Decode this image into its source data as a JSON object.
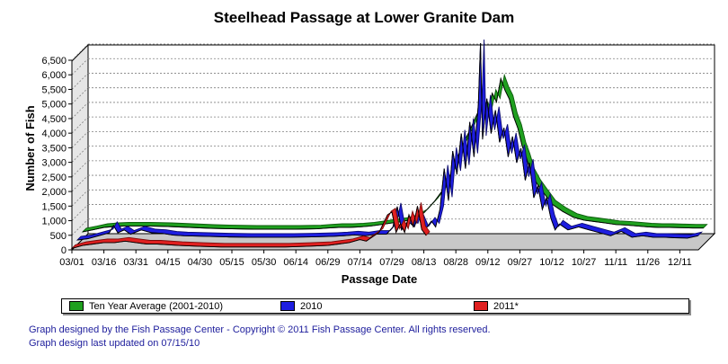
{
  "chart_data": {
    "type": "area",
    "title": "Steelhead Passage at Lower Granite Dam",
    "xlabel": "Passage Date",
    "ylabel": "Number of Fish",
    "x_ticks": [
      "03/01",
      "03/16",
      "03/31",
      "04/15",
      "04/30",
      "05/15",
      "05/30",
      "06/14",
      "06/29",
      "07/14",
      "07/29",
      "08/13",
      "08/28",
      "09/12",
      "09/27",
      "10/12",
      "10/27",
      "11/11",
      "11/26",
      "12/11"
    ],
    "y_ticks": [
      "0",
      "500",
      "1,000",
      "1,500",
      "2,000",
      "2,500",
      "3,000",
      "3,500",
      "4,000",
      "4,500",
      "5,000",
      "5,500",
      "6,000",
      "6,500"
    ],
    "ylim": [
      0,
      7000
    ],
    "x_range_days": [
      0,
      292
    ],
    "grid": true,
    "legend_position": "bottom",
    "series": [
      {
        "name": "Ten Year Average (2001-2010)",
        "color": "#1fa01f",
        "points": [
          [
            0,
            250
          ],
          [
            5,
            320
          ],
          [
            10,
            400
          ],
          [
            15,
            430
          ],
          [
            20,
            450
          ],
          [
            30,
            450
          ],
          [
            40,
            430
          ],
          [
            50,
            400
          ],
          [
            60,
            370
          ],
          [
            70,
            350
          ],
          [
            80,
            340
          ],
          [
            90,
            340
          ],
          [
            100,
            340
          ],
          [
            110,
            350
          ],
          [
            115,
            380
          ],
          [
            120,
            400
          ],
          [
            125,
            400
          ],
          [
            130,
            420
          ],
          [
            135,
            450
          ],
          [
            140,
            500
          ],
          [
            145,
            550
          ],
          [
            150,
            600
          ],
          [
            155,
            700
          ],
          [
            160,
            900
          ],
          [
            165,
            1300
          ],
          [
            170,
            1800
          ],
          [
            174,
            2500
          ],
          [
            178,
            3200
          ],
          [
            182,
            3800
          ],
          [
            185,
            4300
          ],
          [
            188,
            4600
          ],
          [
            190,
            4300
          ],
          [
            192,
            5000
          ],
          [
            194,
            4700
          ],
          [
            196,
            5500
          ],
          [
            198,
            5100
          ],
          [
            200,
            4800
          ],
          [
            202,
            4200
          ],
          [
            204,
            3800
          ],
          [
            206,
            3200
          ],
          [
            208,
            2800
          ],
          [
            210,
            2300
          ],
          [
            213,
            1900
          ],
          [
            216,
            1600
          ],
          [
            220,
            1200
          ],
          [
            225,
            950
          ],
          [
            230,
            750
          ],
          [
            235,
            650
          ],
          [
            240,
            600
          ],
          [
            245,
            550
          ],
          [
            250,
            500
          ],
          [
            255,
            480
          ],
          [
            260,
            450
          ],
          [
            265,
            420
          ],
          [
            270,
            400
          ],
          [
            275,
            400
          ],
          [
            280,
            390
          ],
          [
            286,
            380
          ],
          [
            291,
            380
          ]
        ]
      },
      {
        "name": "2010",
        "color": "#1e1ee0",
        "points": [
          [
            0,
            150
          ],
          [
            5,
            200
          ],
          [
            10,
            300
          ],
          [
            15,
            400
          ],
          [
            17,
            650
          ],
          [
            19,
            400
          ],
          [
            22,
            500
          ],
          [
            25,
            350
          ],
          [
            30,
            500
          ],
          [
            35,
            400
          ],
          [
            40,
            380
          ],
          [
            45,
            320
          ],
          [
            50,
            300
          ],
          [
            60,
            280
          ],
          [
            70,
            260
          ],
          [
            80,
            250
          ],
          [
            90,
            250
          ],
          [
            100,
            250
          ],
          [
            110,
            260
          ],
          [
            120,
            280
          ],
          [
            125,
            300
          ],
          [
            130,
            330
          ],
          [
            135,
            300
          ],
          [
            140,
            350
          ],
          [
            145,
            350
          ],
          [
            148,
            600
          ],
          [
            150,
            1300
          ],
          [
            152,
            500
          ],
          [
            155,
            800
          ],
          [
            158,
            600
          ],
          [
            160,
            1000
          ],
          [
            163,
            500
          ],
          [
            166,
            800
          ],
          [
            168,
            600
          ],
          [
            170,
            1200
          ],
          [
            172,
            2600
          ],
          [
            174,
            1500
          ],
          [
            176,
            3200
          ],
          [
            178,
            2400
          ],
          [
            180,
            3800
          ],
          [
            182,
            2600
          ],
          [
            184,
            4200
          ],
          [
            186,
            3000
          ],
          [
            188,
            4800
          ],
          [
            189,
            6900
          ],
          [
            190,
            3600
          ],
          [
            192,
            5000
          ],
          [
            194,
            3800
          ],
          [
            196,
            4600
          ],
          [
            198,
            3500
          ],
          [
            200,
            4000
          ],
          [
            202,
            3000
          ],
          [
            204,
            3700
          ],
          [
            206,
            2800
          ],
          [
            208,
            3300
          ],
          [
            210,
            2200
          ],
          [
            212,
            2800
          ],
          [
            214,
            1600
          ],
          [
            216,
            2000
          ],
          [
            218,
            1200
          ],
          [
            220,
            1600
          ],
          [
            222,
            900
          ],
          [
            224,
            500
          ],
          [
            226,
            700
          ],
          [
            230,
            500
          ],
          [
            235,
            600
          ],
          [
            240,
            500
          ],
          [
            245,
            400
          ],
          [
            250,
            300
          ],
          [
            255,
            450
          ],
          [
            260,
            250
          ],
          [
            265,
            300
          ],
          [
            270,
            250
          ],
          [
            275,
            250
          ],
          [
            280,
            230
          ],
          [
            286,
            220
          ],
          [
            291,
            300
          ]
        ]
      },
      {
        "name": "2011*",
        "color": "#e02020",
        "points": [
          [
            0,
            50
          ],
          [
            5,
            150
          ],
          [
            10,
            200
          ],
          [
            15,
            250
          ],
          [
            20,
            250
          ],
          [
            25,
            300
          ],
          [
            30,
            250
          ],
          [
            35,
            200
          ],
          [
            40,
            200
          ],
          [
            50,
            150
          ],
          [
            60,
            120
          ],
          [
            70,
            100
          ],
          [
            80,
            100
          ],
          [
            90,
            100
          ],
          [
            100,
            100
          ],
          [
            110,
            120
          ],
          [
            120,
            150
          ],
          [
            125,
            200
          ],
          [
            130,
            250
          ],
          [
            135,
            350
          ],
          [
            138,
            300
          ],
          [
            140,
            400
          ],
          [
            142,
            500
          ],
          [
            144,
            600
          ],
          [
            146,
            900
          ],
          [
            148,
            1200
          ],
          [
            150,
            1300
          ],
          [
            152,
            600
          ],
          [
            154,
            900
          ],
          [
            156,
            600
          ],
          [
            158,
            1200
          ],
          [
            160,
            800
          ],
          [
            162,
            1500
          ],
          [
            164,
            700
          ],
          [
            166,
            500
          ]
        ]
      }
    ]
  },
  "legend": [
    {
      "label": "Ten Year Average (2001-2010)",
      "color": "#1fa01f"
    },
    {
      "label": "2010",
      "color": "#1e1ee0"
    },
    {
      "label": "2011*",
      "color": "#e02020"
    }
  ],
  "credits": {
    "line1": "Graph designed by the Fish Passage Center - Copyright © 2011 Fish Passage Center. All rights reserved.",
    "line2": "Graph design last updated on 07/15/10"
  }
}
